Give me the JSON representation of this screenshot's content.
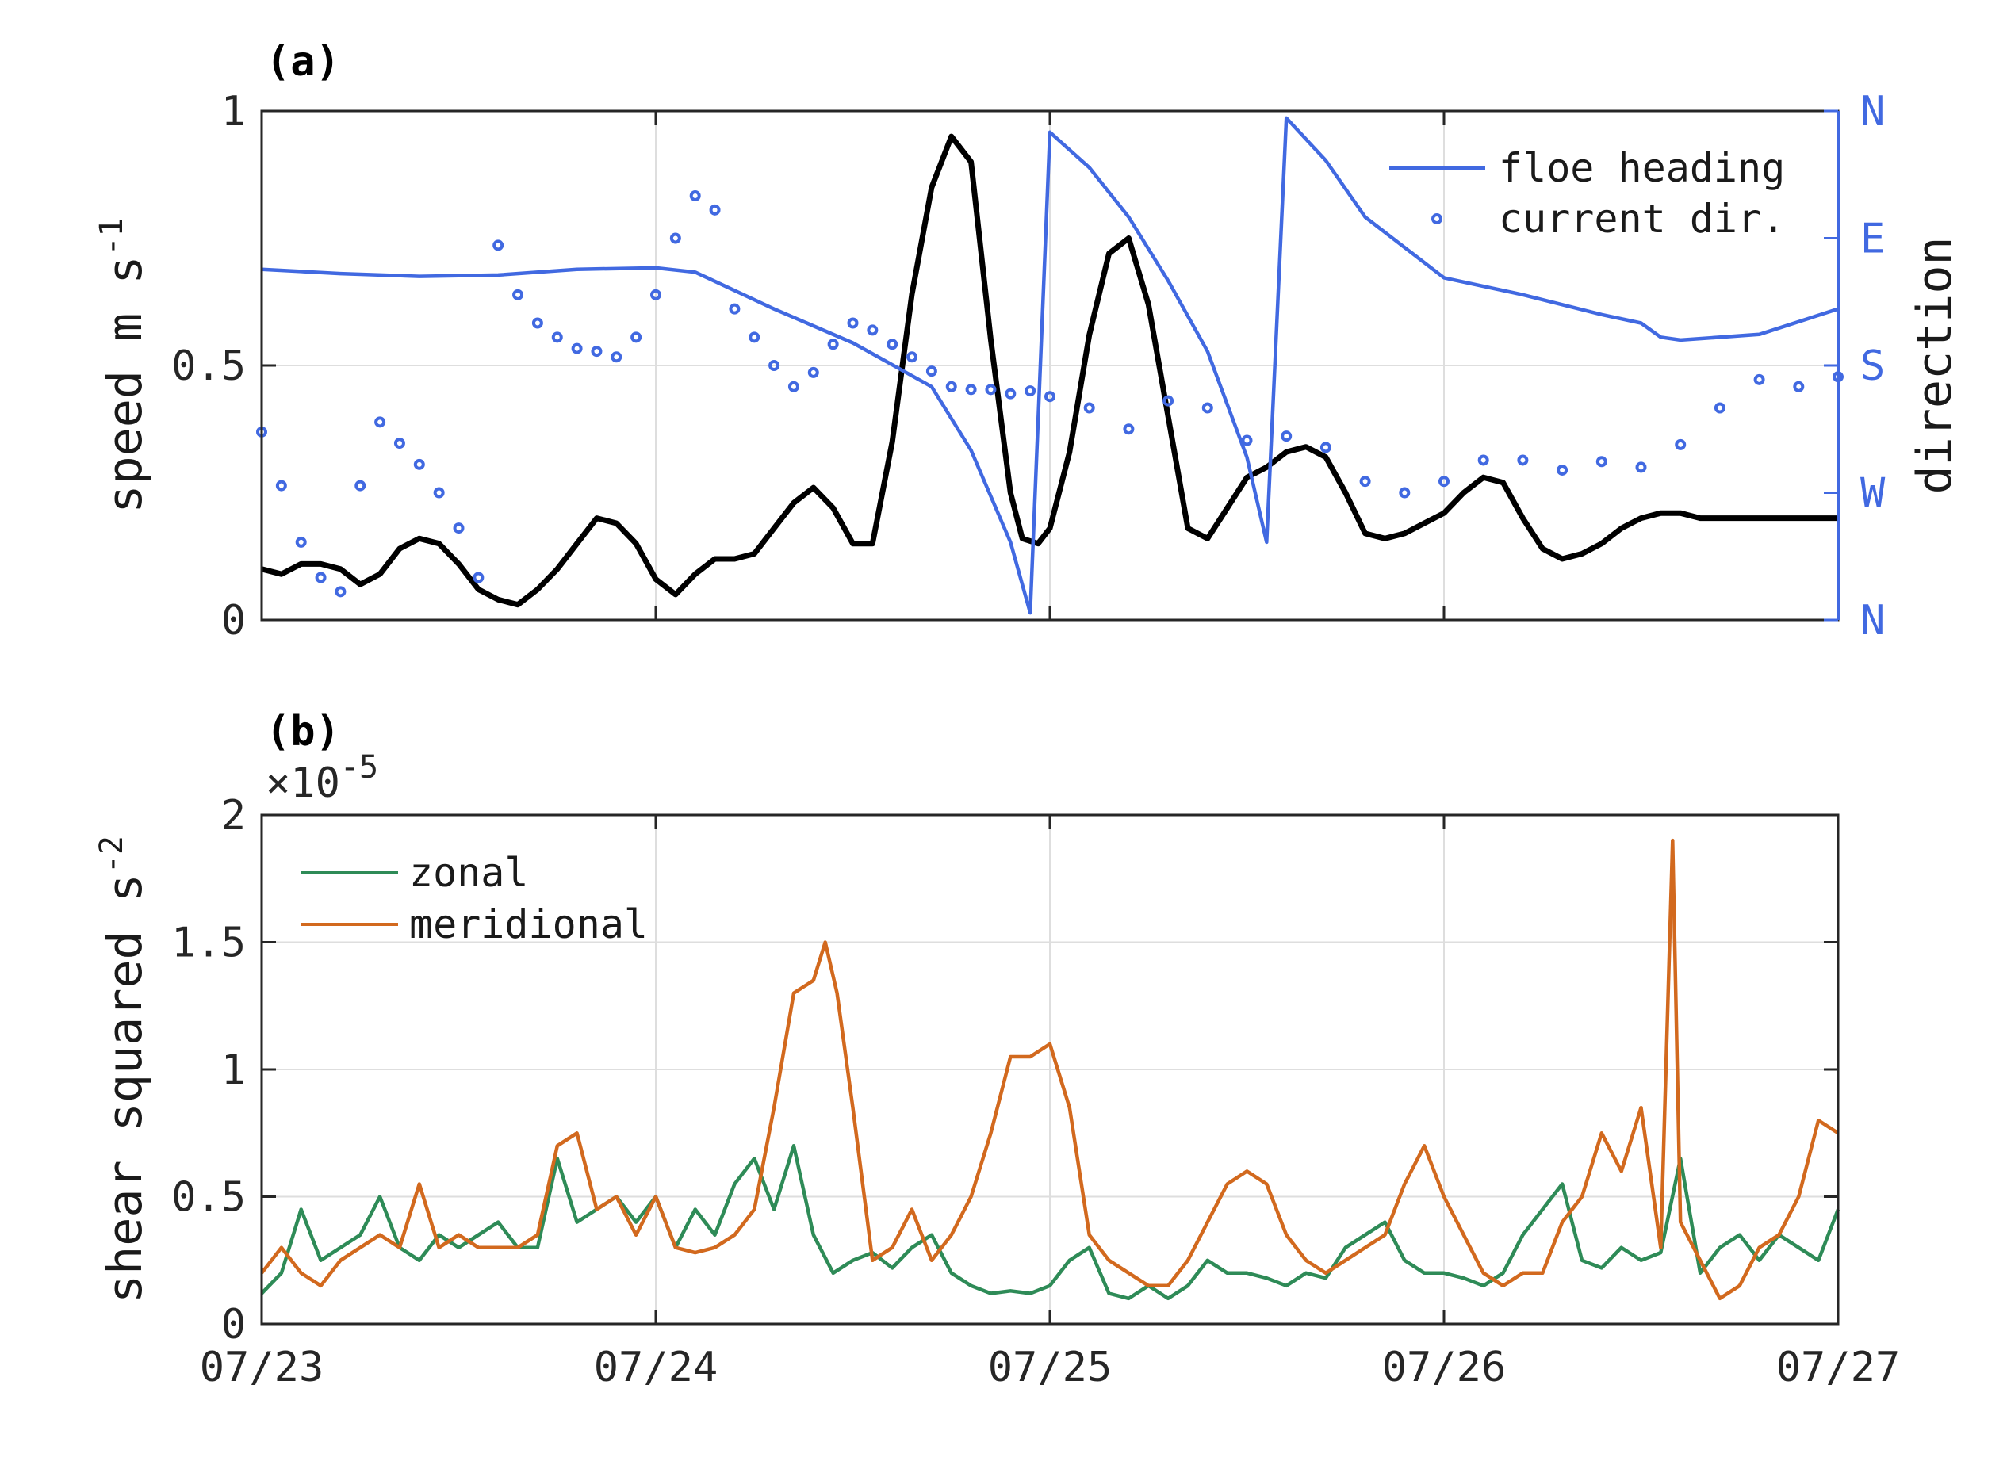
{
  "colors": {
    "speed": "#000000",
    "direction": "#4169e1",
    "zonal": "#2e8b57",
    "meridional": "#d2691e"
  },
  "chart_data": [
    {
      "type": "line",
      "panel_label": "(a)",
      "xlabel": "",
      "ylabel": "speed m s",
      "ylabel_superscript": "-1",
      "ylim": [
        0,
        1
      ],
      "yticks": [
        0,
        0.5,
        1
      ],
      "ytick_labels": [
        "0",
        "0.5",
        "1"
      ],
      "xlim": [
        0,
        4
      ],
      "xticks": [
        0,
        1,
        2,
        3,
        4
      ],
      "y2label": "direction",
      "y2lim": [
        0,
        360
      ],
      "y2ticks": [
        0,
        90,
        180,
        270,
        360
      ],
      "y2tick_labels": [
        "N",
        "W",
        "S",
        "E",
        "N"
      ],
      "grid": true,
      "legend_position": "top-right",
      "series": [
        {
          "name": "",
          "axis": "left",
          "style": "line",
          "x": [
            0,
            0.05,
            0.1,
            0.15,
            0.2,
            0.25,
            0.3,
            0.35,
            0.4,
            0.45,
            0.5,
            0.55,
            0.6,
            0.65,
            0.7,
            0.75,
            0.8,
            0.85,
            0.9,
            0.95,
            1.0,
            1.05,
            1.1,
            1.15,
            1.2,
            1.25,
            1.3,
            1.35,
            1.4,
            1.45,
            1.5,
            1.55,
            1.6,
            1.65,
            1.7,
            1.75,
            1.8,
            1.85,
            1.9,
            1.93,
            1.97,
            2.0,
            2.05,
            2.1,
            2.15,
            2.2,
            2.25,
            2.3,
            2.35,
            2.4,
            2.45,
            2.5,
            2.55,
            2.6,
            2.65,
            2.7,
            2.75,
            2.8,
            2.85,
            2.9,
            2.95,
            3.0,
            3.05,
            3.1,
            3.15,
            3.2,
            3.25,
            3.3,
            3.35,
            3.4,
            3.45,
            3.5,
            3.55,
            3.6,
            3.65,
            3.7,
            3.75,
            3.8,
            3.85,
            3.9,
            3.95,
            4.0
          ],
          "values": [
            0.1,
            0.09,
            0.11,
            0.11,
            0.1,
            0.07,
            0.09,
            0.14,
            0.16,
            0.15,
            0.11,
            0.06,
            0.04,
            0.03,
            0.06,
            0.1,
            0.15,
            0.2,
            0.19,
            0.15,
            0.08,
            0.05,
            0.09,
            0.12,
            0.12,
            0.13,
            0.18,
            0.23,
            0.26,
            0.22,
            0.15,
            0.15,
            0.35,
            0.64,
            0.85,
            0.95,
            0.9,
            0.55,
            0.25,
            0.16,
            0.15,
            0.18,
            0.33,
            0.56,
            0.72,
            0.75,
            0.62,
            0.4,
            0.18,
            0.16,
            0.22,
            0.28,
            0.3,
            0.33,
            0.34,
            0.32,
            0.25,
            0.17,
            0.16,
            0.17,
            0.19,
            0.21,
            0.25,
            0.28,
            0.27,
            0.2,
            0.14,
            0.12,
            0.13,
            0.15,
            0.18,
            0.2,
            0.21,
            0.21,
            0.2,
            0.2,
            0.2,
            0.2,
            0.2,
            0.2,
            0.2,
            0.2
          ]
        },
        {
          "name": "floe heading",
          "axis": "right",
          "style": "line",
          "x": [
            0,
            0.2,
            0.4,
            0.6,
            0.8,
            1.0,
            1.1,
            1.3,
            1.5,
            1.7,
            1.8,
            1.9,
            1.95,
            2.0,
            2.1,
            2.2,
            2.3,
            2.4,
            2.5,
            2.55,
            2.6,
            2.7,
            2.8,
            3.0,
            3.2,
            3.4,
            3.5,
            3.55,
            3.6,
            3.8,
            4.0
          ],
          "values": [
            248,
            245,
            243,
            244,
            248,
            249,
            246,
            220,
            196,
            165,
            120,
            55,
            5,
            345,
            320,
            285,
            240,
            190,
            115,
            55,
            355,
            325,
            285,
            242,
            230,
            216,
            210,
            200,
            198,
            202,
            220
          ]
        },
        {
          "name": "current dir.",
          "axis": "right",
          "style": "dots",
          "x": [
            0,
            0.05,
            0.1,
            0.15,
            0.2,
            0.25,
            0.3,
            0.35,
            0.4,
            0.45,
            0.5,
            0.55,
            0.6,
            0.65,
            0.7,
            0.75,
            0.8,
            0.85,
            0.9,
            0.95,
            1.0,
            1.05,
            1.1,
            1.15,
            1.2,
            1.25,
            1.3,
            1.35,
            1.4,
            1.45,
            1.5,
            1.55,
            1.6,
            1.65,
            1.7,
            1.75,
            1.8,
            1.85,
            1.9,
            1.95,
            2.0,
            2.1,
            2.2,
            2.3,
            2.4,
            2.5,
            2.6,
            2.7,
            2.8,
            2.9,
            3.0,
            3.1,
            3.2,
            3.3,
            3.4,
            3.5,
            3.6,
            3.7,
            3.8,
            3.9,
            4.0
          ],
          "values": [
            133,
            95,
            55,
            30,
            20,
            95,
            140,
            125,
            110,
            90,
            65,
            30,
            265,
            230,
            210,
            200,
            192,
            190,
            186,
            200,
            230,
            270,
            300,
            290,
            220,
            200,
            180,
            165,
            175,
            195,
            210,
            205,
            195,
            186,
            176,
            165,
            163,
            163,
            160,
            162,
            158,
            150,
            135,
            155,
            150,
            127,
            130,
            122,
            98,
            90,
            98,
            113,
            113,
            106,
            112,
            108,
            124,
            150,
            170,
            165,
            172
          ]
        }
      ]
    },
    {
      "type": "line",
      "panel_label": "(b)",
      "xlabel": "",
      "ylabel": "shear squared s",
      "ylabel_superscript": "-2",
      "exponent_label": "×10",
      "exponent_superscript": "-5",
      "ylim": [
        0,
        2
      ],
      "yticks": [
        0,
        0.5,
        1,
        1.5,
        2
      ],
      "ytick_labels": [
        "0",
        "0.5",
        "1",
        "1.5",
        "2"
      ],
      "xlim": [
        0,
        4
      ],
      "xticks": [
        0,
        1,
        2,
        3,
        4
      ],
      "xtick_labels": [
        "07/23",
        "07/24",
        "07/25",
        "07/26",
        "07/27"
      ],
      "grid": true,
      "legend_position": "top-left",
      "series": [
        {
          "name": "zonal",
          "x": [
            0,
            0.05,
            0.1,
            0.15,
            0.2,
            0.25,
            0.3,
            0.35,
            0.4,
            0.45,
            0.5,
            0.55,
            0.6,
            0.65,
            0.7,
            0.75,
            0.8,
            0.85,
            0.9,
            0.95,
            1.0,
            1.05,
            1.1,
            1.15,
            1.2,
            1.25,
            1.3,
            1.35,
            1.4,
            1.45,
            1.5,
            1.55,
            1.6,
            1.65,
            1.7,
            1.75,
            1.8,
            1.85,
            1.9,
            1.95,
            2.0,
            2.05,
            2.1,
            2.15,
            2.2,
            2.25,
            2.3,
            2.35,
            2.4,
            2.45,
            2.5,
            2.55,
            2.6,
            2.65,
            2.7,
            2.75,
            2.8,
            2.85,
            2.9,
            2.95,
            3.0,
            3.05,
            3.1,
            3.15,
            3.2,
            3.25,
            3.3,
            3.35,
            3.4,
            3.45,
            3.5,
            3.55,
            3.6,
            3.65,
            3.7,
            3.75,
            3.8,
            3.85,
            3.9,
            3.95,
            4.0
          ],
          "values": [
            0.12,
            0.2,
            0.45,
            0.25,
            0.3,
            0.35,
            0.5,
            0.3,
            0.25,
            0.35,
            0.3,
            0.35,
            0.4,
            0.3,
            0.3,
            0.65,
            0.4,
            0.45,
            0.5,
            0.4,
            0.5,
            0.3,
            0.45,
            0.35,
            0.55,
            0.65,
            0.45,
            0.7,
            0.35,
            0.2,
            0.25,
            0.28,
            0.22,
            0.3,
            0.35,
            0.2,
            0.15,
            0.12,
            0.13,
            0.12,
            0.15,
            0.25,
            0.3,
            0.12,
            0.1,
            0.15,
            0.1,
            0.15,
            0.25,
            0.2,
            0.2,
            0.18,
            0.15,
            0.2,
            0.18,
            0.3,
            0.35,
            0.4,
            0.25,
            0.2,
            0.2,
            0.18,
            0.15,
            0.2,
            0.35,
            0.45,
            0.55,
            0.25,
            0.22,
            0.3,
            0.25,
            0.28,
            0.65,
            0.2,
            0.3,
            0.35,
            0.25,
            0.35,
            0.3,
            0.25,
            0.45
          ]
        },
        {
          "name": "meridional",
          "x": [
            0,
            0.05,
            0.1,
            0.15,
            0.2,
            0.25,
            0.3,
            0.35,
            0.4,
            0.45,
            0.5,
            0.55,
            0.6,
            0.65,
            0.7,
            0.75,
            0.8,
            0.85,
            0.9,
            0.95,
            1.0,
            1.05,
            1.1,
            1.15,
            1.2,
            1.25,
            1.3,
            1.35,
            1.4,
            1.43,
            1.46,
            1.5,
            1.55,
            1.6,
            1.65,
            1.7,
            1.75,
            1.8,
            1.85,
            1.9,
            1.95,
            2.0,
            2.05,
            2.1,
            2.15,
            2.2,
            2.25,
            2.3,
            2.35,
            2.4,
            2.45,
            2.5,
            2.55,
            2.6,
            2.65,
            2.7,
            2.75,
            2.8,
            2.85,
            2.9,
            2.95,
            3.0,
            3.05,
            3.1,
            3.15,
            3.2,
            3.25,
            3.3,
            3.35,
            3.4,
            3.45,
            3.5,
            3.55,
            3.58,
            3.6,
            3.65,
            3.7,
            3.75,
            3.8,
            3.85,
            3.9,
            3.95,
            4.0
          ],
          "values": [
            0.2,
            0.3,
            0.2,
            0.15,
            0.25,
            0.3,
            0.35,
            0.3,
            0.55,
            0.3,
            0.35,
            0.3,
            0.3,
            0.3,
            0.35,
            0.7,
            0.75,
            0.45,
            0.5,
            0.35,
            0.5,
            0.3,
            0.28,
            0.3,
            0.35,
            0.45,
            0.85,
            1.3,
            1.35,
            1.5,
            1.3,
            0.85,
            0.25,
            0.3,
            0.45,
            0.25,
            0.35,
            0.5,
            0.75,
            1.05,
            1.05,
            1.1,
            0.85,
            0.35,
            0.25,
            0.2,
            0.15,
            0.15,
            0.25,
            0.4,
            0.55,
            0.6,
            0.55,
            0.35,
            0.25,
            0.2,
            0.25,
            0.3,
            0.35,
            0.55,
            0.7,
            0.5,
            0.35,
            0.2,
            0.15,
            0.2,
            0.2,
            0.4,
            0.5,
            0.75,
            0.6,
            0.85,
            0.3,
            1.9,
            0.4,
            0.25,
            0.1,
            0.15,
            0.3,
            0.35,
            0.5,
            0.8,
            0.75
          ]
        }
      ]
    }
  ]
}
